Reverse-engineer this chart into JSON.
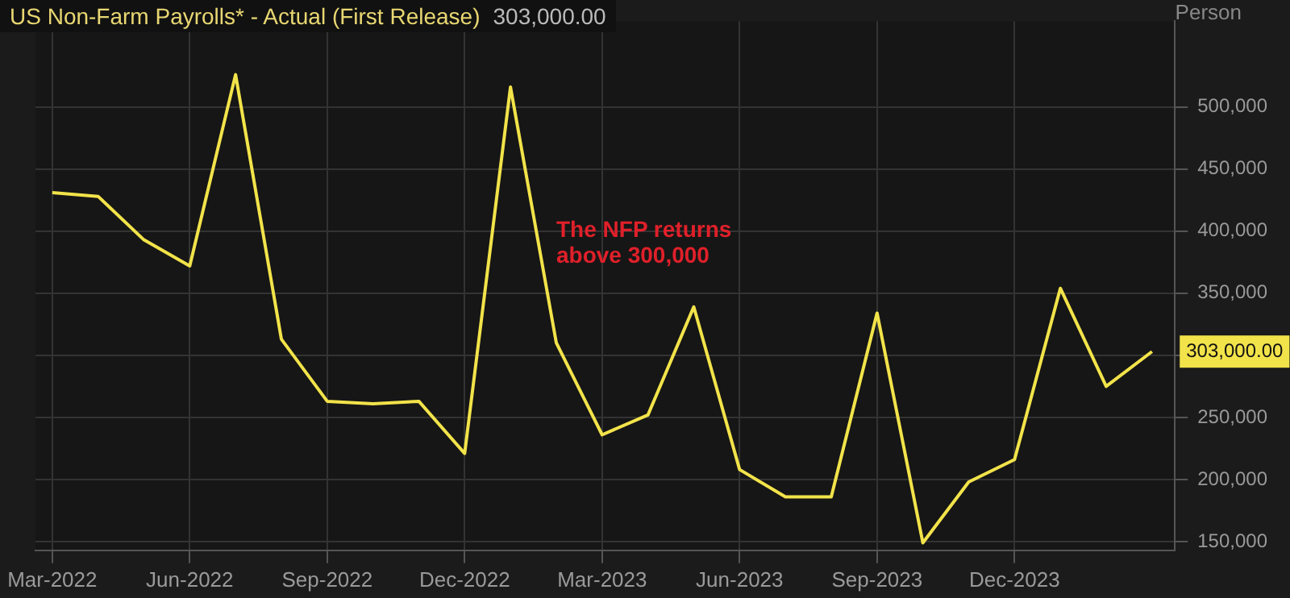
{
  "chart_data": {
    "type": "line",
    "title": "US Non-Farm Payrolls* - Actual (First Release)",
    "subtitle": "303,000.00",
    "ylabel": "Person",
    "x": [
      "2022-03",
      "2022-04",
      "2022-05",
      "2022-06",
      "2022-07",
      "2022-08",
      "2022-09",
      "2022-10",
      "2022-11",
      "2022-12",
      "2023-01",
      "2023-02",
      "2023-03",
      "2023-04",
      "2023-05",
      "2023-06",
      "2023-07",
      "2023-08",
      "2023-09",
      "2023-10",
      "2023-11",
      "2023-12",
      "2024-01",
      "2024-02",
      "2024-03"
    ],
    "series": [
      {
        "color": "#f2e34a",
        "values": [
          431000,
          428000,
          393000,
          372000,
          526000,
          313000,
          263000,
          261000,
          263000,
          221000,
          516000,
          310000,
          236000,
          252000,
          339000,
          208000,
          186000,
          186000,
          334000,
          149000,
          198000,
          216000,
          354000,
          275000,
          303000
        ],
        "value_labels": [
          null,
          null,
          null,
          null,
          null,
          null,
          null,
          null,
          null,
          null,
          null,
          null,
          null,
          null,
          null,
          null,
          null,
          null,
          null,
          null,
          null,
          null,
          null,
          null,
          "303,000.00"
        ]
      }
    ],
    "xlim": [
      "2022-02-20",
      "2024-03-16"
    ],
    "ylim": [
      143000,
      569000
    ],
    "xticks": [
      {
        "value": "2022-03",
        "label": "Mar-2022"
      },
      {
        "value": "2022-06",
        "label": "Jun-2022"
      },
      {
        "value": "2022-09",
        "label": "Sep-2022"
      },
      {
        "value": "2022-12",
        "label": "Dec-2022"
      },
      {
        "value": "2023-03",
        "label": "Mar-2023"
      },
      {
        "value": "2023-06",
        "label": "Jun-2023"
      },
      {
        "value": "2023-09",
        "label": "Sep-2023"
      },
      {
        "value": "2023-12",
        "label": "Dec-2023"
      }
    ],
    "yticks": [
      {
        "value": 150000,
        "label": "150,000"
      },
      {
        "value": 200000,
        "label": "200,000"
      },
      {
        "value": 250000,
        "label": "250,000"
      },
      {
        "value": 300000,
        "label": null
      },
      {
        "value": 350000,
        "label": "350,000"
      },
      {
        "value": 400000,
        "label": "400,000"
      },
      {
        "value": 450000,
        "label": "450,000"
      },
      {
        "value": 500000,
        "label": "500,000"
      }
    ],
    "grid": true,
    "marker": "none",
    "line_style": "solid",
    "annotations": [
      "The NFP returns above 300,000"
    ]
  }
}
